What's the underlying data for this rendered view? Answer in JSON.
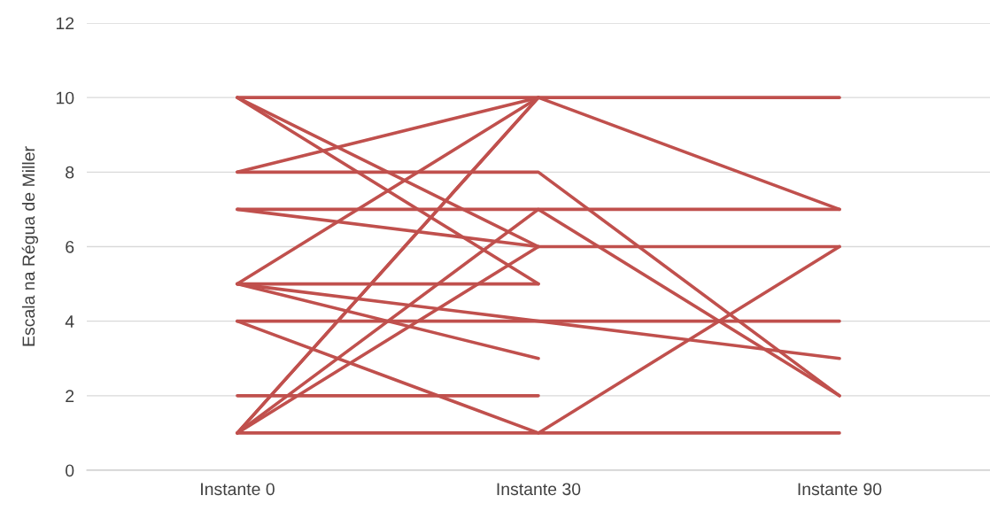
{
  "chart_data": {
    "type": "line",
    "ylabel": "Escala na Régua de Miller",
    "categories": [
      "Instante 0",
      "Instante 30",
      "Instante 90"
    ],
    "ylim": [
      0,
      12
    ],
    "yticks": [
      0,
      2,
      4,
      6,
      8,
      10,
      12
    ],
    "grid": "y",
    "marker": "none",
    "line_style": "solid",
    "series": [
      {
        "color": "#c0504d",
        "values": [
          10,
          10,
          10
        ]
      },
      {
        "color": "#c0504d",
        "values": [
          8,
          10,
          7
        ]
      },
      {
        "color": "#c0504d",
        "values": [
          5,
          10,
          null
        ]
      },
      {
        "color": "#c0504d",
        "values": [
          1,
          10,
          null
        ]
      },
      {
        "color": "#c0504d",
        "values": [
          1,
          10,
          null
        ]
      },
      {
        "color": "#c0504d",
        "values": [
          8,
          8,
          2
        ]
      },
      {
        "color": "#c0504d",
        "values": [
          7,
          7,
          7
        ]
      },
      {
        "color": "#c0504d",
        "values": [
          1,
          7,
          2
        ]
      },
      {
        "color": "#c0504d",
        "values": [
          10,
          6,
          6
        ]
      },
      {
        "color": "#c0504d",
        "values": [
          7,
          6,
          null
        ]
      },
      {
        "color": "#c0504d",
        "values": [
          1,
          6,
          null
        ]
      },
      {
        "color": "#c0504d",
        "values": [
          10,
          5,
          null
        ]
      },
      {
        "color": "#c0504d",
        "values": [
          5,
          5,
          null
        ]
      },
      {
        "color": "#c0504d",
        "values": [
          5,
          4,
          3
        ]
      },
      {
        "color": "#c0504d",
        "values": [
          4,
          4,
          4
        ]
      },
      {
        "color": "#c0504d",
        "values": [
          5,
          3,
          null
        ]
      },
      {
        "color": "#c0504d",
        "values": [
          2,
          2,
          null
        ]
      },
      {
        "color": "#c0504d",
        "values": [
          4,
          1,
          6
        ]
      },
      {
        "color": "#c0504d",
        "values": [
          1,
          1,
          1
        ]
      }
    ]
  }
}
